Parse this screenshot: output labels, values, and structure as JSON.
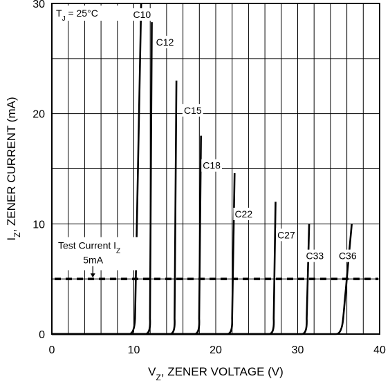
{
  "chart_data": {
    "type": "line",
    "title": "",
    "xlabel": {
      "main": "V",
      "sub": "Z",
      "rest": ", ZENER VOLTAGE (V)"
    },
    "ylabel": {
      "main": "I",
      "sub": "Z",
      "rest": ", ZENER CURRENT (mA)"
    },
    "xlim": [
      0,
      40
    ],
    "ylim": [
      0,
      30
    ],
    "x_ticks": [
      0,
      10,
      20,
      30,
      40
    ],
    "y_ticks": [
      0,
      10,
      20,
      30
    ],
    "grid": true,
    "annotation_temp": {
      "main": "T",
      "sub": "J",
      "rest": " = 25°C"
    },
    "test_current": {
      "label": {
        "main": "Test Current I",
        "sub": "Z"
      },
      "value_label": "5mA",
      "x": 5,
      "y": 5
    },
    "series": [
      {
        "name": "C10",
        "knee": 9.9,
        "top": [
          10.9,
          30
        ],
        "label_at": [
          11.0,
          29.0
        ]
      },
      {
        "name": "C12",
        "knee": 11.9,
        "top": [
          12.2,
          28.3
        ],
        "label_at": [
          13.8,
          26.5
        ]
      },
      {
        "name": "C15",
        "knee": 14.9,
        "top": [
          15.2,
          23.0
        ],
        "label_at": [
          17.2,
          20.3
        ]
      },
      {
        "name": "C18",
        "knee": 17.9,
        "top": [
          18.2,
          18.0
        ],
        "label_at": [
          19.5,
          15.3
        ]
      },
      {
        "name": "C22",
        "knee": 21.9,
        "top": [
          22.3,
          14.6
        ],
        "label_at": [
          23.4,
          10.9
        ]
      },
      {
        "name": "C27",
        "knee": 27.0,
        "top": [
          27.3,
          12.0
        ],
        "label_at": [
          28.6,
          9.0
        ]
      },
      {
        "name": "C33",
        "knee": 31.0,
        "top": [
          31.4,
          10.0
        ],
        "label_at": [
          32.1,
          7.1
        ]
      },
      {
        "name": "C36",
        "knee": 35.2,
        "top": [
          36.6,
          10.0
        ],
        "label_at": [
          36.1,
          7.1
        ]
      }
    ]
  }
}
